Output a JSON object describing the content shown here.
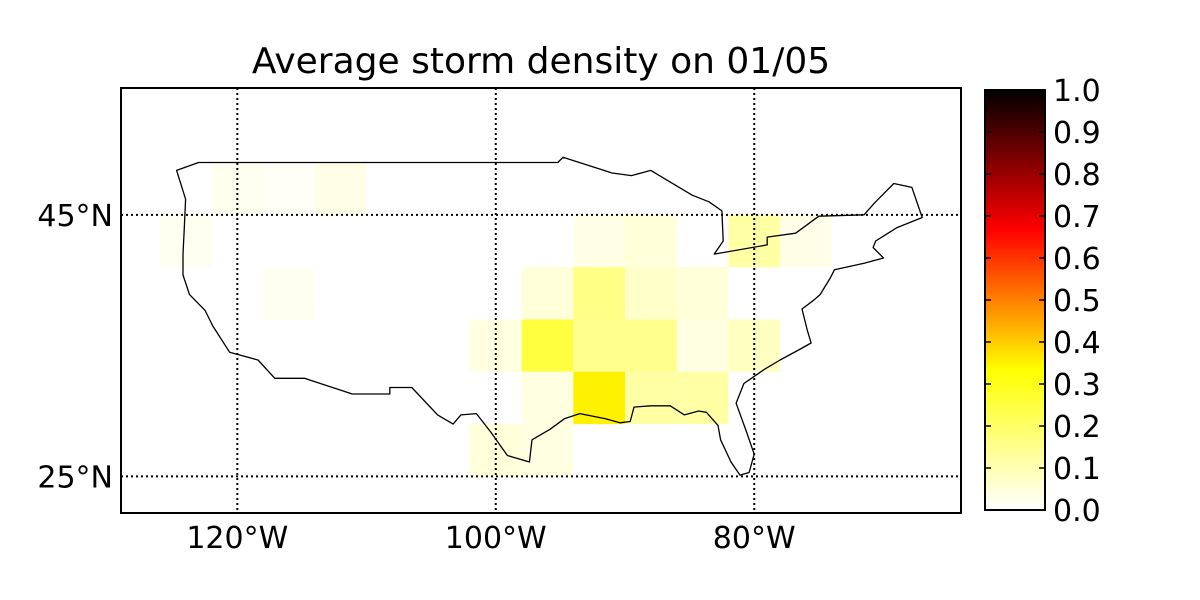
{
  "title": "Average storm density on 01/05",
  "x_axis": {
    "ticks": [
      {
        "lon": -120,
        "label": "120°W"
      },
      {
        "lon": -100,
        "label": "100°W"
      },
      {
        "lon": -80,
        "label": "80°W"
      }
    ]
  },
  "y_axis": {
    "ticks": [
      {
        "lat": 45,
        "label": "45°N"
      },
      {
        "lat": 25,
        "label": "25°N"
      }
    ]
  },
  "colorbar": {
    "colormap": "hot_r",
    "range": [
      0.0,
      1.0
    ],
    "ticks": [
      "1.0",
      "0.9",
      "0.8",
      "0.7",
      "0.6",
      "0.5",
      "0.4",
      "0.3",
      "0.2",
      "0.1",
      "0.0"
    ],
    "stops": [
      "#ffffff",
      "#ffff80",
      "#ffff00",
      "#ff8000",
      "#ff0000",
      "#800000",
      "#000000"
    ]
  },
  "chart_data": {
    "type": "heatmap",
    "title": "Average storm density on 01/05",
    "xlim": [
      -129,
      -64
    ],
    "ylim": [
      22.2,
      54.7
    ],
    "grid": true,
    "cell_size_deg": 4,
    "cells": [
      {
        "lon": -120,
        "lat": 47,
        "value": 0.02
      },
      {
        "lon": -116,
        "lat": 47,
        "value": 0.01
      },
      {
        "lon": -112,
        "lat": 47,
        "value": 0.03
      },
      {
        "lon": -124,
        "lat": 43,
        "value": 0.02
      },
      {
        "lon": -116,
        "lat": 39,
        "value": 0.02
      },
      {
        "lon": -92,
        "lat": 43,
        "value": 0.03
      },
      {
        "lon": -88,
        "lat": 43,
        "value": 0.05
      },
      {
        "lon": -76,
        "lat": 43,
        "value": 0.03
      },
      {
        "lon": -80,
        "lat": 43,
        "value": 0.12
      },
      {
        "lon": -96,
        "lat": 39,
        "value": 0.05
      },
      {
        "lon": -92,
        "lat": 39,
        "value": 0.16
      },
      {
        "lon": -88,
        "lat": 39,
        "value": 0.07
      },
      {
        "lon": -84,
        "lat": 39,
        "value": 0.05
      },
      {
        "lon": -100,
        "lat": 35,
        "value": 0.04
      },
      {
        "lon": -96,
        "lat": 35,
        "value": 0.25
      },
      {
        "lon": -92,
        "lat": 35,
        "value": 0.15
      },
      {
        "lon": -88,
        "lat": 35,
        "value": 0.15
      },
      {
        "lon": -84,
        "lat": 35,
        "value": 0.04
      },
      {
        "lon": -80,
        "lat": 35,
        "value": 0.08
      },
      {
        "lon": -96,
        "lat": 31,
        "value": 0.04
      },
      {
        "lon": -92,
        "lat": 31,
        "value": 0.35
      },
      {
        "lon": -88,
        "lat": 31,
        "value": 0.12
      },
      {
        "lon": -84,
        "lat": 31,
        "value": 0.12
      },
      {
        "lon": -100,
        "lat": 27,
        "value": 0.05
      },
      {
        "lon": -96,
        "lat": 27,
        "value": 0.04
      }
    ],
    "outline": [
      [
        -124.7,
        48.4
      ],
      [
        -123.0,
        49.0
      ],
      [
        -95.2,
        49.0
      ],
      [
        -94.8,
        49.4
      ],
      [
        -91.0,
        48.2
      ],
      [
        -89.5,
        48.0
      ],
      [
        -88.0,
        48.4
      ],
      [
        -84.8,
        46.5
      ],
      [
        -83.5,
        46.0
      ],
      [
        -82.5,
        45.3
      ],
      [
        -82.4,
        43.0
      ],
      [
        -83.1,
        42.0
      ],
      [
        -79.0,
        42.7
      ],
      [
        -79.0,
        43.3
      ],
      [
        -76.8,
        43.6
      ],
      [
        -75.0,
        44.9
      ],
      [
        -71.5,
        45.0
      ],
      [
        -70.7,
        45.9
      ],
      [
        -69.2,
        47.4
      ],
      [
        -67.8,
        47.1
      ],
      [
        -67.0,
        44.8
      ],
      [
        -69.0,
        44.0
      ],
      [
        -70.6,
        43.0
      ],
      [
        -70.8,
        42.5
      ],
      [
        -70.0,
        41.7
      ],
      [
        -71.5,
        41.3
      ],
      [
        -73.8,
        40.8
      ],
      [
        -74.1,
        40.2
      ],
      [
        -74.9,
        38.9
      ],
      [
        -75.5,
        38.4
      ],
      [
        -76.3,
        37.8
      ],
      [
        -75.9,
        36.2
      ],
      [
        -75.6,
        35.2
      ],
      [
        -76.5,
        34.7
      ],
      [
        -78.0,
        33.9
      ],
      [
        -79.2,
        33.2
      ],
      [
        -80.8,
        32.1
      ],
      [
        -81.4,
        30.6
      ],
      [
        -80.6,
        28.4
      ],
      [
        -80.0,
        26.7
      ],
      [
        -80.4,
        25.3
      ],
      [
        -81.1,
        25.1
      ],
      [
        -81.8,
        26.1
      ],
      [
        -82.6,
        27.8
      ],
      [
        -82.8,
        28.9
      ],
      [
        -83.7,
        29.9
      ],
      [
        -84.3,
        30.0
      ],
      [
        -85.4,
        29.7
      ],
      [
        -86.5,
        30.4
      ],
      [
        -88.0,
        30.4
      ],
      [
        -89.3,
        30.3
      ],
      [
        -89.6,
        29.2
      ],
      [
        -90.4,
        29.1
      ],
      [
        -91.5,
        29.4
      ],
      [
        -93.5,
        29.8
      ],
      [
        -94.7,
        29.4
      ],
      [
        -95.8,
        28.6
      ],
      [
        -97.2,
        27.8
      ],
      [
        -97.4,
        26.1
      ],
      [
        -99.1,
        26.6
      ],
      [
        -100.4,
        28.4
      ],
      [
        -101.5,
        29.8
      ],
      [
        -102.7,
        29.7
      ],
      [
        -103.3,
        29.0
      ],
      [
        -104.5,
        29.7
      ],
      [
        -106.5,
        31.8
      ],
      [
        -108.2,
        31.8
      ],
      [
        -108.2,
        31.3
      ],
      [
        -111.1,
        31.3
      ],
      [
        -114.8,
        32.5
      ],
      [
        -117.1,
        32.5
      ],
      [
        -118.4,
        33.9
      ],
      [
        -120.6,
        34.5
      ],
      [
        -121.9,
        36.5
      ],
      [
        -122.5,
        37.7
      ],
      [
        -123.7,
        38.9
      ],
      [
        -124.2,
        40.4
      ],
      [
        -124.2,
        42.0
      ],
      [
        -124.1,
        44.0
      ],
      [
        -124.0,
        46.2
      ],
      [
        -124.7,
        48.4
      ]
    ]
  }
}
